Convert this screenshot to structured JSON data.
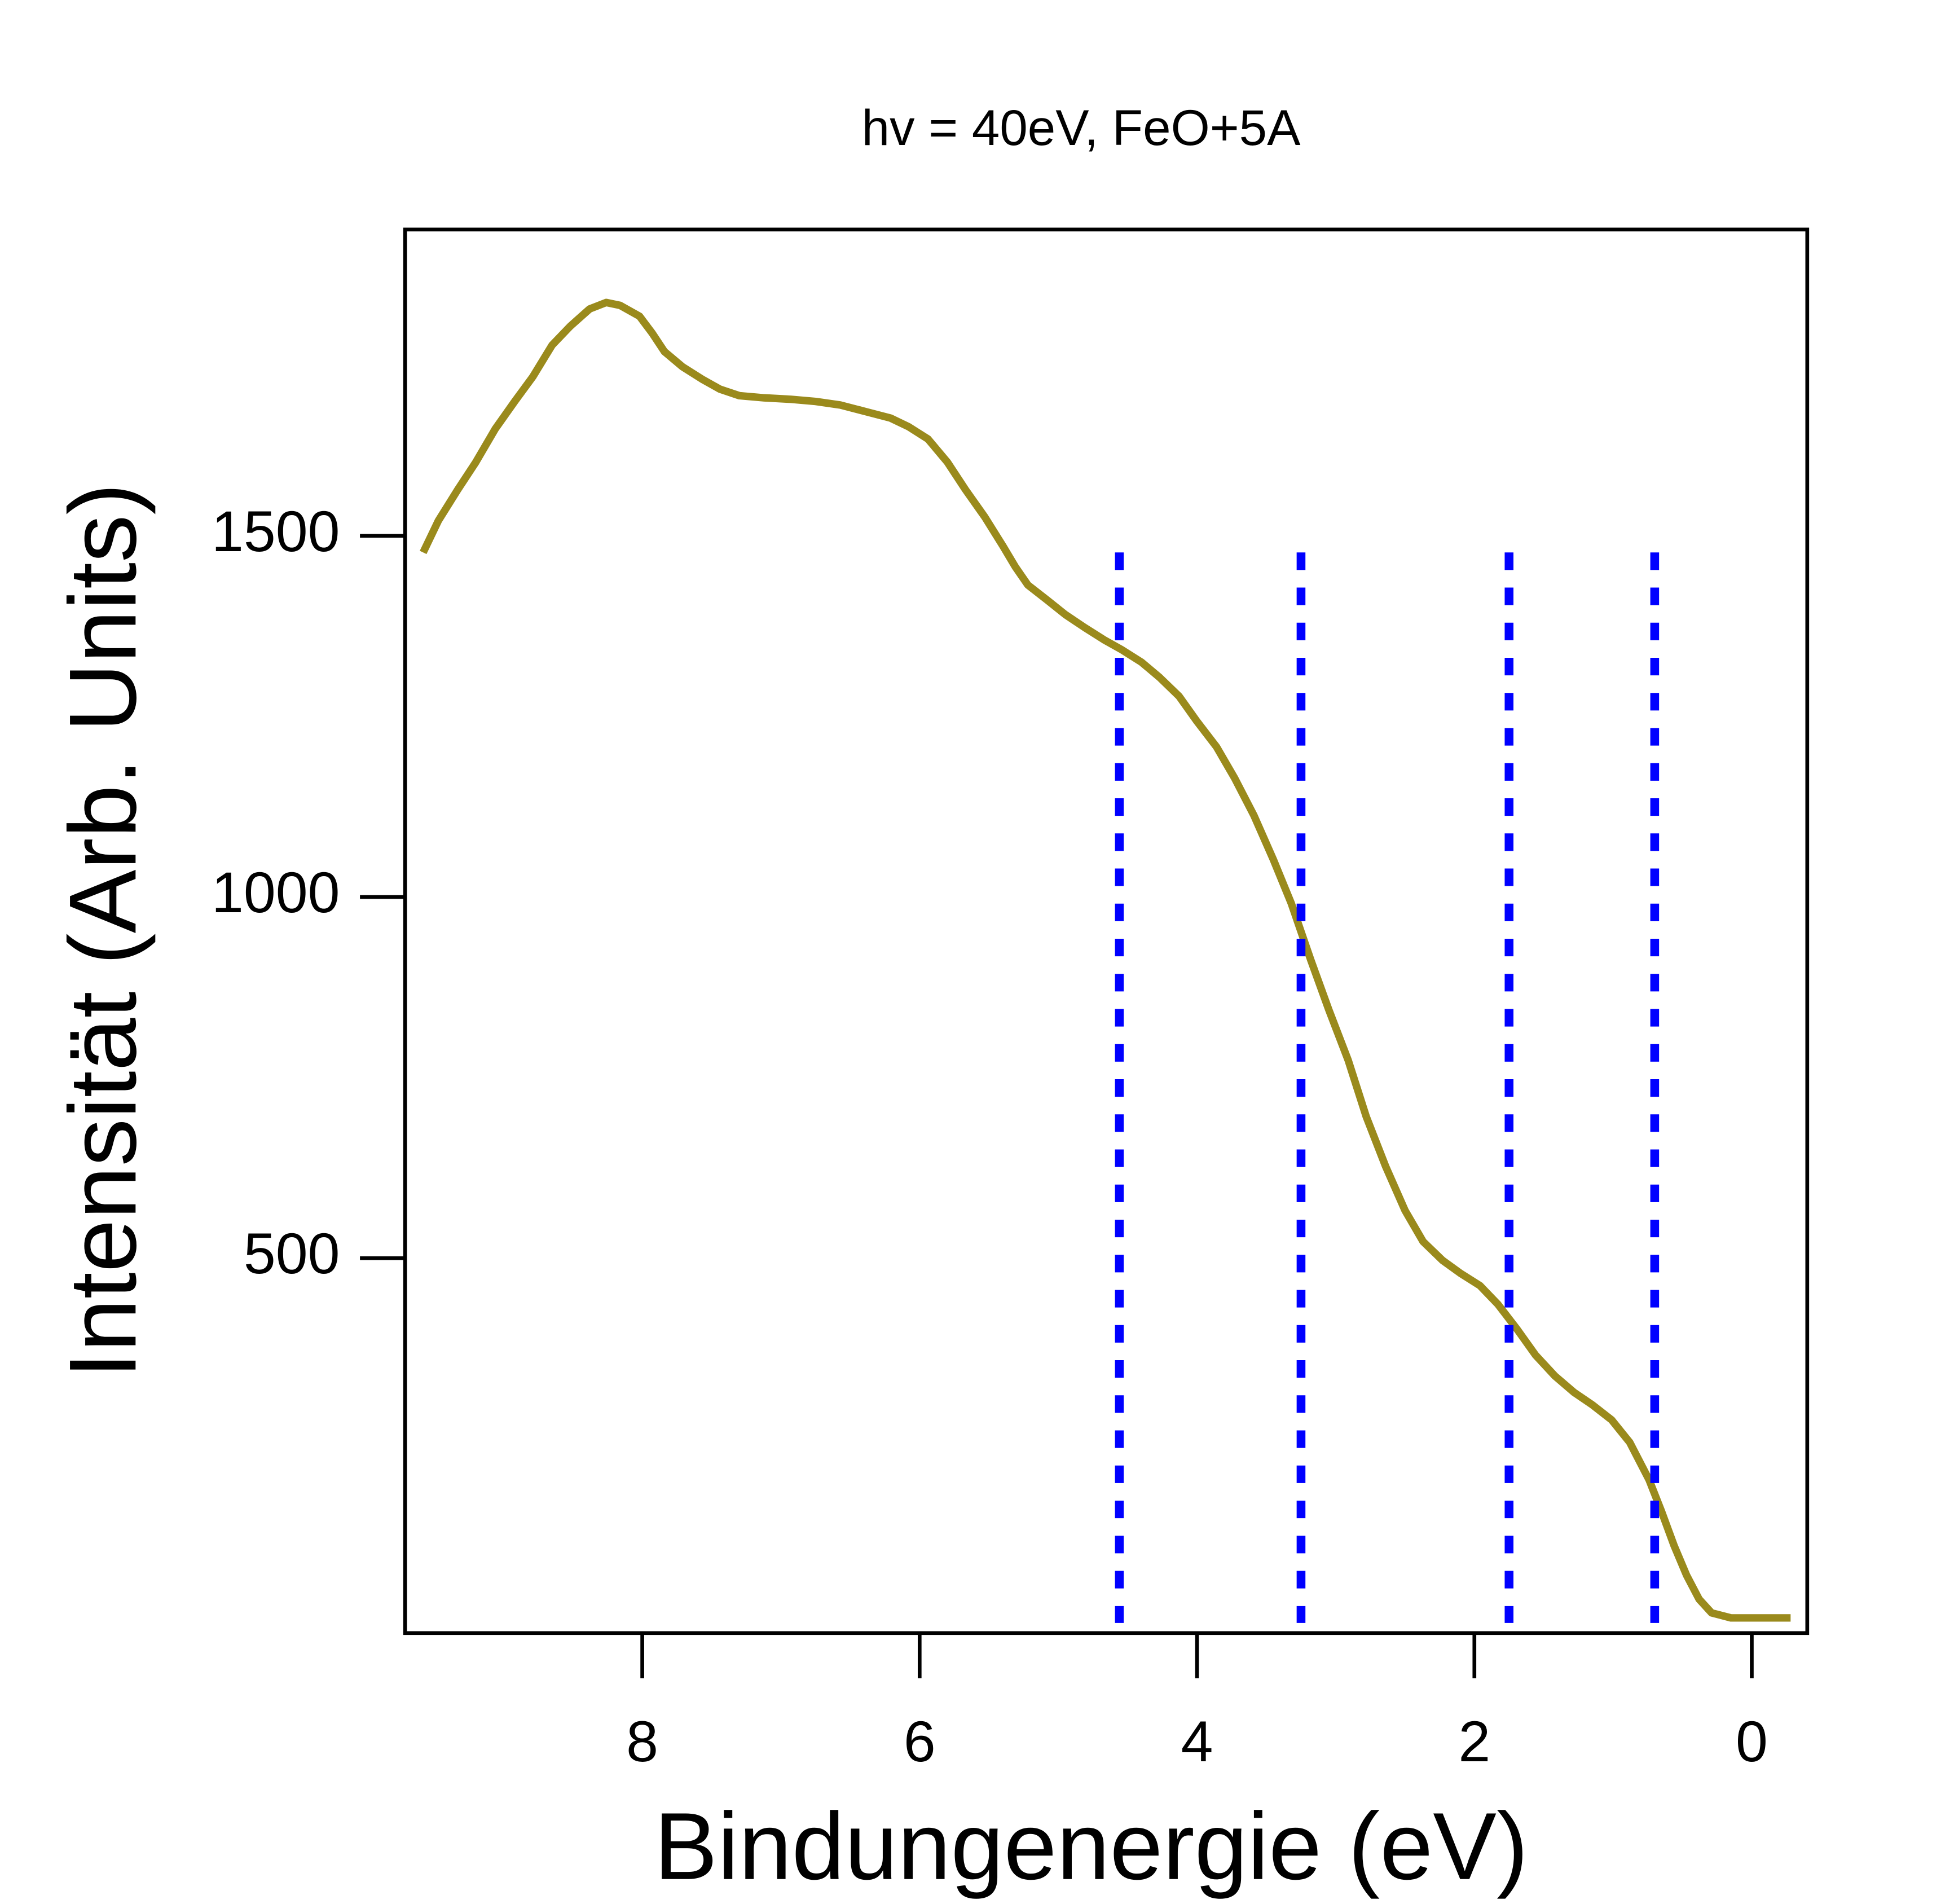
{
  "chart_data": {
    "type": "line",
    "title": "hv = 40eV, FeO+5A",
    "x_label": "Bindungenergie (eV)",
    "y_label": "Intensität (Arb. Units)",
    "x": [
      9.58,
      9.47,
      9.33,
      9.2,
      9.06,
      8.92,
      8.79,
      8.65,
      8.52,
      8.38,
      8.26,
      8.16,
      8.02,
      7.93,
      7.84,
      7.71,
      7.57,
      7.44,
      7.3,
      7.12,
      6.93,
      6.75,
      6.57,
      6.39,
      6.21,
      6.08,
      5.94,
      5.8,
      5.67,
      5.53,
      5.4,
      5.31,
      5.22,
      5.08,
      4.95,
      4.81,
      4.67,
      4.54,
      4.4,
      4.27,
      4.13,
      4.0,
      3.86,
      3.73,
      3.59,
      3.45,
      3.32,
      3.18,
      3.05,
      2.91,
      2.78,
      2.64,
      2.5,
      2.37,
      2.23,
      2.1,
      1.96,
      1.83,
      1.69,
      1.56,
      1.42,
      1.28,
      1.15,
      1.01,
      0.88,
      0.74,
      0.65,
      0.56,
      0.47,
      0.38,
      0.29,
      0.15,
      -0.03,
      -0.28
    ],
    "values": [
      1477,
      1521,
      1564,
      1602,
      1648,
      1686,
      1720,
      1764,
      1790,
      1814,
      1823,
      1819,
      1804,
      1781,
      1755,
      1734,
      1717,
      1703,
      1694,
      1691,
      1689,
      1686,
      1681,
      1672,
      1663,
      1651,
      1634,
      1602,
      1564,
      1526,
      1486,
      1457,
      1432,
      1411,
      1391,
      1373,
      1356,
      1342,
      1325,
      1304,
      1278,
      1243,
      1208,
      1165,
      1113,
      1052,
      991,
      913,
      844,
      774,
      696,
      627,
      566,
      523,
      497,
      479,
      462,
      436,
      401,
      366,
      337,
      314,
      297,
      276,
      245,
      193,
      149,
      102,
      61,
      28,
      9,
      2,
      2,
      2
    ],
    "color": "#9a8a1c",
    "vlines": [
      4.56,
      3.25,
      1.75,
      0.7
    ],
    "vline_span": [
      -5,
      1477
    ],
    "vline_color": "#0000ff",
    "xlim": [
      9.71,
      -0.4
    ],
    "ylim": [
      -19,
      1924
    ],
    "xticks": [
      8,
      6,
      4,
      2,
      0
    ],
    "yticks": [
      500,
      1000,
      1500
    ]
  }
}
